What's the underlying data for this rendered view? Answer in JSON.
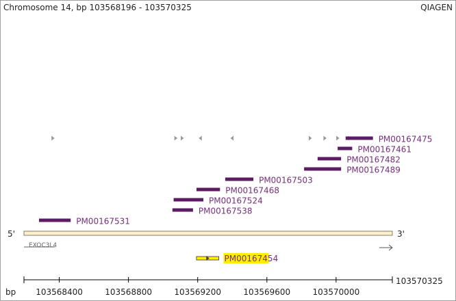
{
  "header": {
    "title": "Chromosome 14, bp 103568196 - 103570325",
    "brand": "QIAGEN"
  },
  "colors": {
    "probe_bar": "#5b1c63",
    "probe_label": "#7a2d83",
    "gene_fill": "#fdf0cd",
    "gene_border": "#8a7a5a",
    "highlight": "#ffee00",
    "axis": "#000000",
    "marker": "#9a9a9a"
  },
  "chromosome": {
    "start_bp": 103568196,
    "end_bp": 103570325,
    "five_prime_label": "5'",
    "three_prime_label": "3'"
  },
  "gene": {
    "name": "EXOC3L4",
    "strand": "+"
  },
  "markers": {
    "forward_bp": [
      103568363,
      103569073,
      103569110,
      103569850,
      103569935,
      103570009
    ],
    "reverse_bp": [
      103569216,
      103569399,
      103570065
    ]
  },
  "probes": [
    {
      "id": "PM00167475",
      "start": 103570055,
      "end": 103570213
    },
    {
      "id": "PM00167461",
      "start": 103570009,
      "end": 103570093
    },
    {
      "id": "PM00167482",
      "start": 103569893,
      "end": 103570029
    },
    {
      "id": "PM00167489",
      "start": 103569815,
      "end": 103570029
    },
    {
      "id": "PM00167503",
      "start": 103569359,
      "end": 103569522
    },
    {
      "id": "PM00167468",
      "start": 103569193,
      "end": 103569329
    },
    {
      "id": "PM00167524",
      "start": 103569061,
      "end": 103569233
    },
    {
      "id": "PM00167538",
      "start": 103569054,
      "end": 103569173
    },
    {
      "id": "PM00167531",
      "start": 103568283,
      "end": 103568466
    }
  ],
  "highlighted_probe": {
    "id": "PM00167454",
    "start": 103569193,
    "end": 103569322,
    "strand": "+"
  },
  "axis": {
    "unit_label": "bp",
    "end_label": "103570325",
    "ticks": [
      103568400,
      103568800,
      103569200,
      103569600,
      103570000
    ]
  }
}
